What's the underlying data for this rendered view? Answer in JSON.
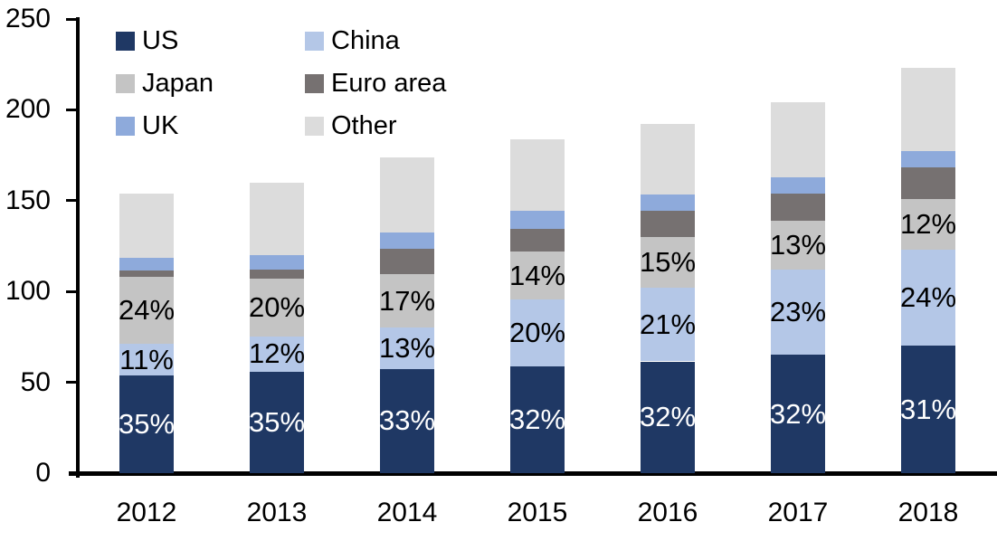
{
  "chart_data": {
    "type": "bar",
    "stacked": true,
    "title": "",
    "xlabel": "",
    "ylabel": "",
    "categories": [
      "2012",
      "2013",
      "2014",
      "2015",
      "2016",
      "2017",
      "2018"
    ],
    "ylim": [
      0,
      250
    ],
    "yticks": [
      0,
      50,
      100,
      150,
      200,
      250
    ],
    "grid": false,
    "axis_color": "#000000",
    "background_color": "#FFFFFF",
    "bar_totals_estimated": [
      154,
      160,
      174,
      184,
      192,
      204,
      223
    ],
    "stack_order_note": "series listed bottom-to-top",
    "series": [
      {
        "name": "US",
        "color": "#1F3864",
        "values": [
          54,
          56,
          57.5,
          59,
          61.5,
          65,
          70
        ],
        "labels": [
          "35%",
          "35%",
          "33%",
          "32%",
          "32%",
          "32%",
          "31%"
        ],
        "label_color": "#FFFFFF"
      },
      {
        "name": "China",
        "color": "#B4C7E7",
        "values": [
          17,
          19,
          22.5,
          36.5,
          40.5,
          47,
          53
        ],
        "labels": [
          "11%",
          "12%",
          "13%",
          "20%",
          "21%",
          "23%",
          "24%"
        ],
        "label_color": "#000000"
      },
      {
        "name": "Japan",
        "color": "#C4C4C4",
        "values": [
          37,
          32,
          29.5,
          26.5,
          28,
          27,
          28
        ],
        "labels": [
          "24%",
          "20%",
          "17%",
          "14%",
          "15%",
          "13%",
          "12%"
        ],
        "label_color": "#000000"
      },
      {
        "name": "Euro area",
        "color": "#767171",
        "values": [
          3.5,
          5,
          14,
          12.5,
          14.5,
          15,
          17.5
        ],
        "labels": null,
        "label_color": null
      },
      {
        "name": "UK",
        "color": "#8EAADB",
        "values": [
          7,
          8,
          9,
          10,
          9,
          9,
          9
        ],
        "labels": null,
        "label_color": null
      },
      {
        "name": "Other",
        "color": "#DCDCDC",
        "values": [
          35.5,
          40,
          41.5,
          39.5,
          38.5,
          41,
          45.5
        ],
        "labels": null,
        "label_color": null
      }
    ],
    "legend": {
      "position": "top-left",
      "columns": [
        [
          "US",
          "Japan",
          "UK"
        ],
        [
          "China",
          "Euro area",
          "Other"
        ]
      ]
    }
  }
}
